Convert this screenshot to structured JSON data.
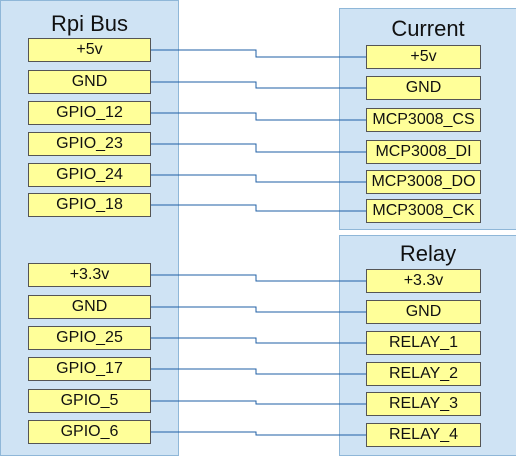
{
  "rpi_bus": {
    "title": "Rpi Bus",
    "pins_top": [
      "+5v",
      "GND",
      "GPIO_12",
      "GPIO_23",
      "GPIO_24",
      "GPIO_18"
    ],
    "pins_bottom": [
      "+3.3v",
      "GND",
      "GPIO_25",
      "GPIO_17",
      "GPIO_5",
      "GPIO_6"
    ]
  },
  "current": {
    "title": "Current",
    "pins": [
      "+5v",
      "GND",
      "MCP3008_CS",
      "MCP3008_DI",
      "MCP3008_DO",
      "MCP3008_CK"
    ]
  },
  "relay": {
    "title": "Relay",
    "pins": [
      "+3.3v",
      "GND",
      "RELAY_1",
      "RELAY_2",
      "RELAY_3",
      "RELAY_4"
    ]
  },
  "colors": {
    "panel_fill": "#cfe3f4",
    "panel_border": "#8fb7d8",
    "pin_fill": "#ffff99",
    "wire": "#1f5fa6"
  }
}
